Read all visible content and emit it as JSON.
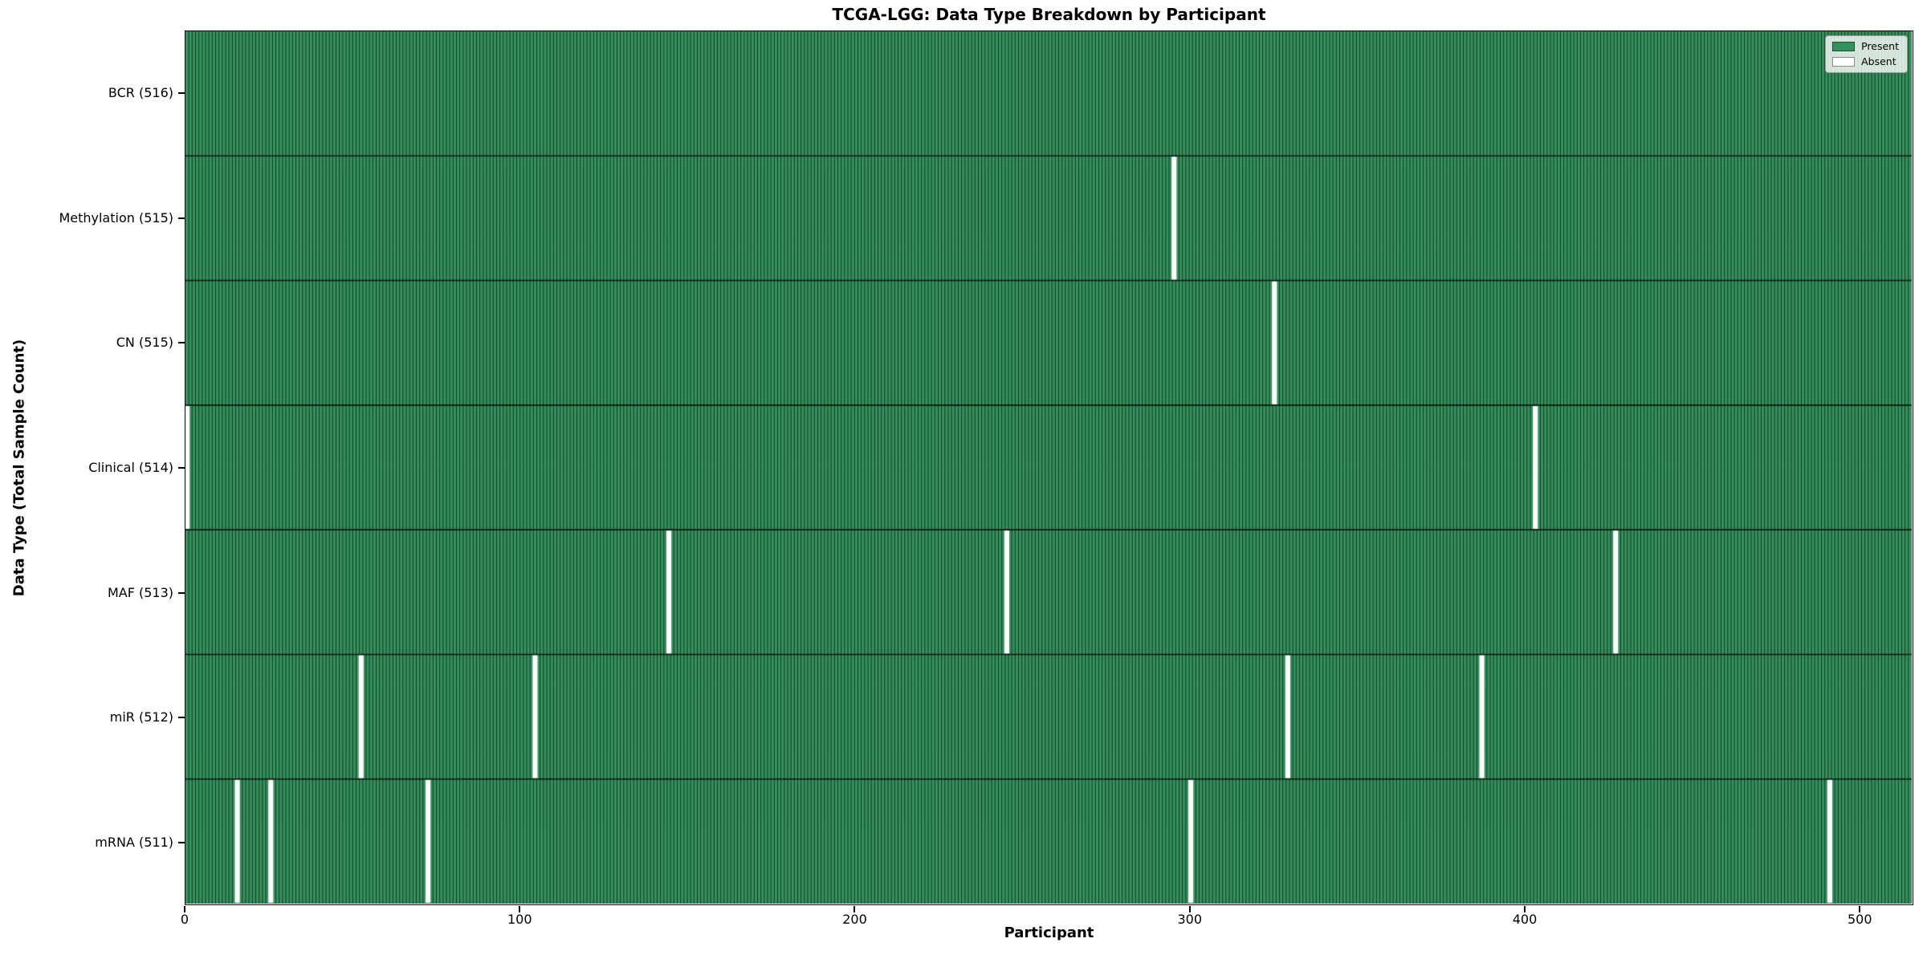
{
  "chart_data": {
    "type": "heatmap",
    "title": "TCGA-LGG: Data Type Breakdown by Participant",
    "xlabel": "Participant",
    "ylabel": "Data Type (Total Sample Count)",
    "n_participants": 516,
    "x_ticks": [
      0,
      100,
      200,
      300,
      400,
      500
    ],
    "grid": false,
    "legend_position": "upper right",
    "legend": [
      {
        "label": "Present",
        "value": "present"
      },
      {
        "label": "Absent",
        "value": "absent"
      }
    ],
    "colors": {
      "present": "#35925e",
      "absent": "#ffffff",
      "grid_line": "rgba(0,0,0,0.7)",
      "row_line": "rgba(0,0,0,0.8)",
      "frame": "#000000"
    },
    "rows": [
      {
        "label": "BCR (516)",
        "data_type": "BCR",
        "present_count": 516,
        "absent_participants": []
      },
      {
        "label": "Methylation (515)",
        "data_type": "Methylation",
        "present_count": 515,
        "absent_participants": [
          295
        ]
      },
      {
        "label": "CN (515)",
        "data_type": "CN",
        "present_count": 515,
        "absent_participants": [
          325
        ]
      },
      {
        "label": "Clinical (514)",
        "data_type": "Clinical",
        "present_count": 514,
        "absent_participants": [
          0,
          403
        ]
      },
      {
        "label": "MAF (513)",
        "data_type": "MAF",
        "present_count": 513,
        "absent_participants": [
          144,
          245,
          427
        ]
      },
      {
        "label": "miR (512)",
        "data_type": "miR",
        "present_count": 512,
        "absent_participants": [
          52,
          104,
          329,
          387
        ]
      },
      {
        "label": "mRNA (511)",
        "data_type": "mRNA",
        "present_count": 511,
        "absent_participants": [
          15,
          25,
          72,
          300,
          491
        ]
      }
    ]
  }
}
